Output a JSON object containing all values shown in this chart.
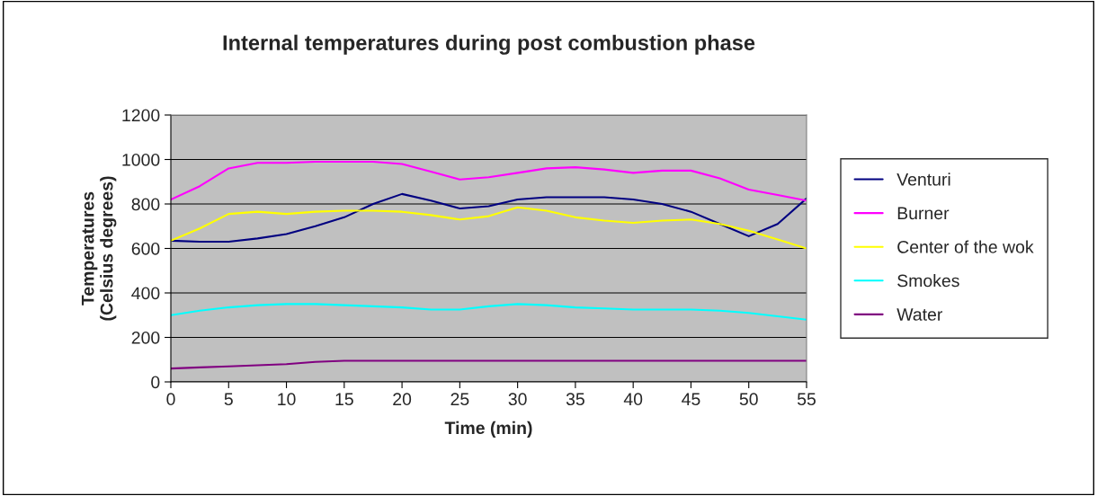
{
  "chart_data": {
    "type": "line",
    "title": "Internal temperatures during post combustion phase",
    "xlabel": "Time (min)",
    "ylabel": "Temperatures (Celsius degrees)",
    "x": [
      0,
      2.5,
      5,
      7.5,
      10,
      12.5,
      15,
      17.5,
      20,
      22.5,
      25,
      27.5,
      30,
      32.5,
      35,
      37.5,
      40,
      42.5,
      45,
      47.5,
      50,
      52.5,
      55
    ],
    "series": [
      {
        "name": "Venturi",
        "color": "#000080",
        "values": [
          635,
          630,
          630,
          645,
          665,
          700,
          740,
          800,
          845,
          815,
          780,
          790,
          820,
          830,
          830,
          830,
          820,
          800,
          765,
          710,
          655,
          710,
          825
        ]
      },
      {
        "name": "Burner",
        "color": "#ff00ff",
        "values": [
          820,
          880,
          960,
          985,
          985,
          990,
          990,
          990,
          980,
          945,
          910,
          920,
          940,
          960,
          965,
          955,
          940,
          950,
          950,
          915,
          865,
          840,
          815
        ]
      },
      {
        "name": "Center of the wok",
        "color": "#ffff00",
        "values": [
          635,
          690,
          755,
          765,
          755,
          765,
          770,
          770,
          765,
          750,
          730,
          745,
          785,
          770,
          740,
          725,
          715,
          725,
          730,
          710,
          680,
          640,
          600
        ]
      },
      {
        "name": "Smokes",
        "color": "#00ffff",
        "values": [
          300,
          320,
          335,
          345,
          350,
          350,
          345,
          340,
          335,
          325,
          325,
          340,
          350,
          345,
          335,
          330,
          325,
          325,
          325,
          320,
          310,
          295,
          280
        ]
      },
      {
        "name": "Water",
        "color": "#800080",
        "values": [
          60,
          65,
          70,
          75,
          80,
          90,
          95,
          95,
          95,
          95,
          95,
          95,
          95,
          95,
          95,
          95,
          95,
          95,
          95,
          95,
          95,
          95,
          95
        ]
      }
    ],
    "xlim": [
      0,
      55
    ],
    "xticks": [
      0,
      5,
      10,
      15,
      20,
      25,
      30,
      35,
      40,
      45,
      50,
      55
    ],
    "ylim": [
      0,
      1200
    ],
    "yticks": [
      0,
      200,
      400,
      600,
      800,
      1000,
      1200
    ],
    "grid": "y",
    "legend": "right",
    "marker": "none",
    "line_style": "solid"
  }
}
